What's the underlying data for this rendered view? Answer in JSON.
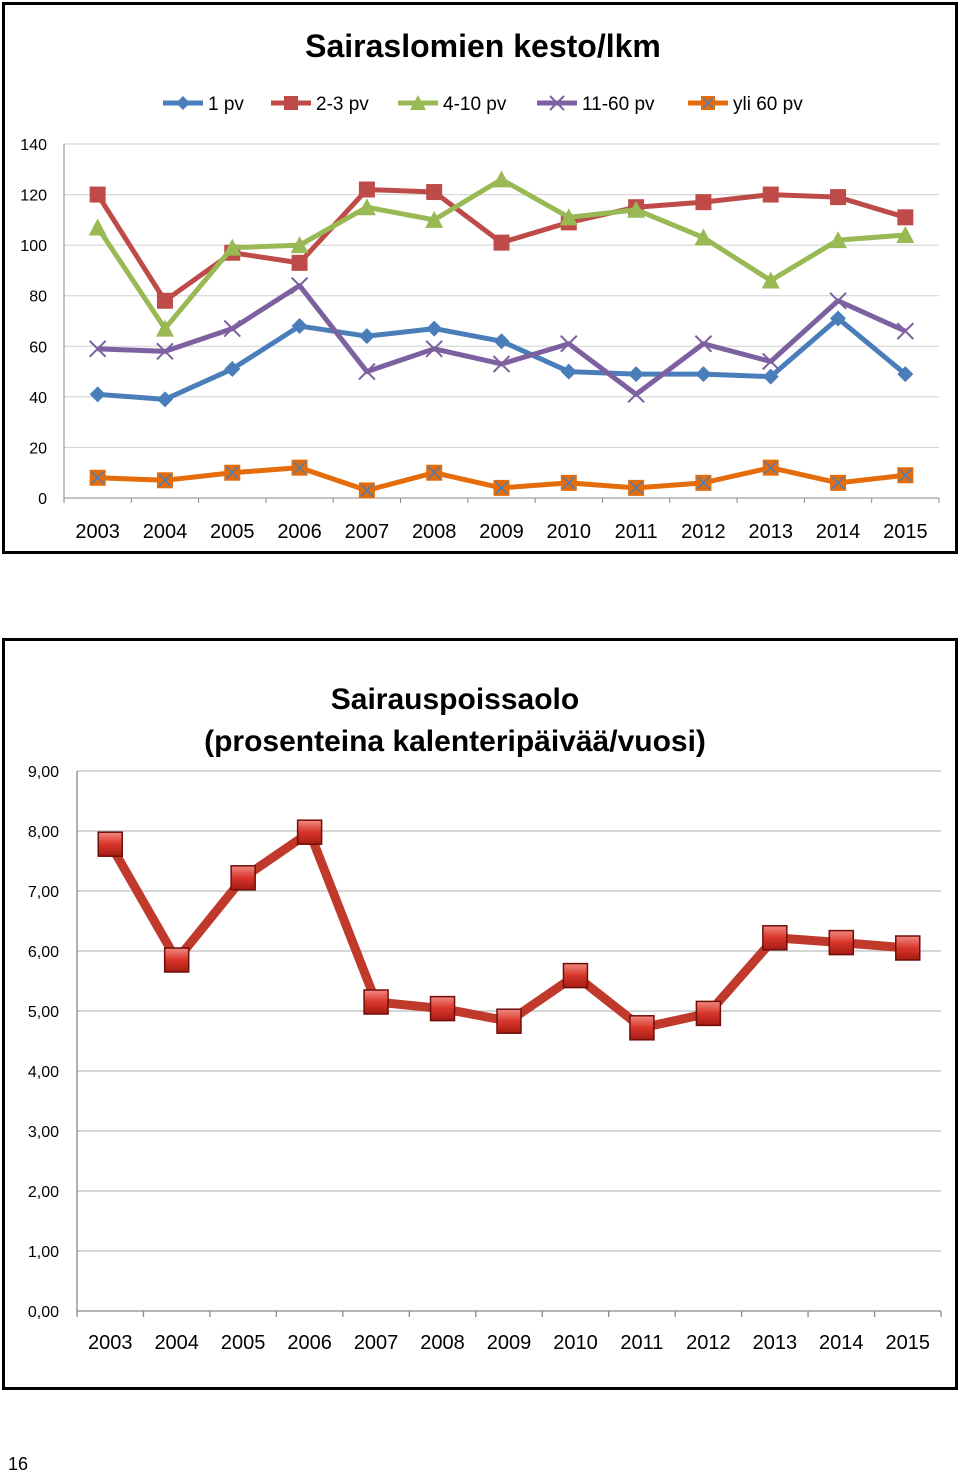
{
  "page_number": "16",
  "chart_data": [
    {
      "type": "line",
      "title": "Sairaslomien kesto/lkm",
      "xlabel": "",
      "ylabel": "",
      "categories": [
        "2003",
        "2004",
        "2005",
        "2006",
        "2007",
        "2008",
        "2009",
        "2010",
        "2011",
        "2012",
        "2013",
        "2014",
        "2015"
      ],
      "ylim": [
        0,
        140
      ],
      "yticks": [
        "0",
        "20",
        "40",
        "60",
        "80",
        "100",
        "120",
        "140"
      ],
      "grid": true,
      "legend_position": "top",
      "series": [
        {
          "name": "1 pv",
          "color": "#4a7ebb",
          "marker": "diamond",
          "values": [
            41,
            39,
            51,
            68,
            64,
            67,
            62,
            50,
            49,
            49,
            48,
            71,
            49
          ]
        },
        {
          "name": "2-3 pv",
          "color": "#be4b48",
          "marker": "square",
          "values": [
            120,
            78,
            97,
            93,
            122,
            121,
            101,
            109,
            115,
            117,
            120,
            119,
            111
          ]
        },
        {
          "name": "4-10 pv",
          "color": "#98b954",
          "marker": "triangle",
          "values": [
            107,
            67,
            99,
            100,
            115,
            110,
            126,
            111,
            114,
            103,
            86,
            102,
            104
          ]
        },
        {
          "name": "11-60 pv",
          "color": "#7d60a0",
          "marker": "x",
          "values": [
            59,
            58,
            67,
            84,
            50,
            59,
            53,
            61,
            41,
            61,
            54,
            78,
            66
          ]
        },
        {
          "name": "yli 60 pv",
          "color": "#e46c0a",
          "marker": "xsquare",
          "values": [
            8,
            7,
            10,
            12,
            3,
            10,
            4,
            6,
            4,
            6,
            12,
            6,
            9
          ]
        }
      ]
    },
    {
      "type": "line",
      "title": [
        "Sairauspoissaolo",
        "(prosenteina kalenteripäivää/vuosi)"
      ],
      "xlabel": "",
      "ylabel": "",
      "categories": [
        "2003",
        "2004",
        "2005",
        "2006",
        "2007",
        "2008",
        "2009",
        "2010",
        "2011",
        "2012",
        "2013",
        "2014",
        "2015"
      ],
      "ylim": [
        0,
        9
      ],
      "yticks": [
        "0,00",
        "1,00",
        "2,00",
        "3,00",
        "4,00",
        "5,00",
        "6,00",
        "7,00",
        "8,00",
        "9,00"
      ],
      "grid": true,
      "legend_position": "none",
      "series": [
        {
          "color": "#c0392b",
          "marker": "square",
          "values": [
            7.78,
            5.85,
            7.22,
            7.98,
            5.15,
            5.04,
            4.83,
            5.59,
            4.72,
            4.96,
            6.22,
            6.14,
            6.05
          ]
        }
      ]
    }
  ]
}
